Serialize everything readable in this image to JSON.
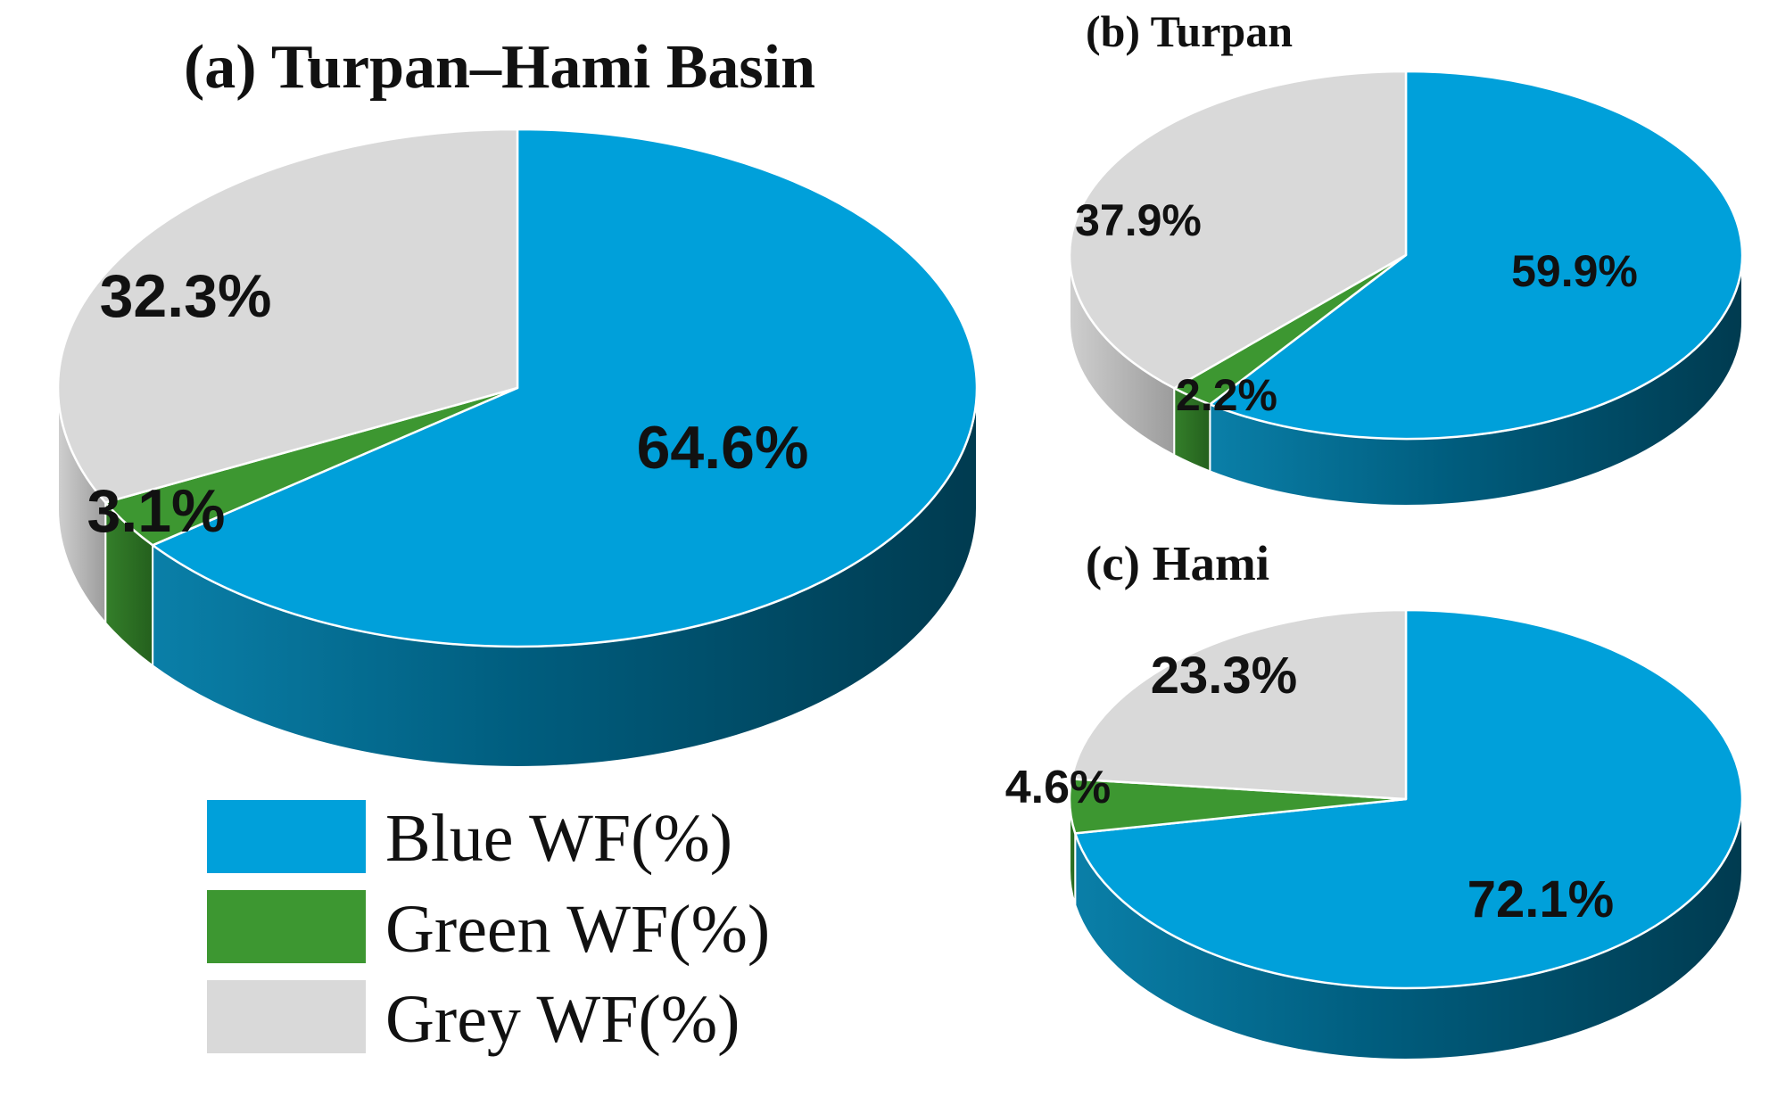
{
  "chart_data": [
    {
      "type": "pie",
      "title": "(a) Turpan–Hami Basin",
      "categories": [
        "Blue WF(%)",
        "Green WF(%)",
        "Grey WF(%)"
      ],
      "values": [
        64.6,
        3.1,
        32.3
      ],
      "labels": [
        "64.6%",
        "3.1%",
        "32.3%"
      ]
    },
    {
      "type": "pie",
      "title": "(b) Turpan",
      "categories": [
        "Blue WF(%)",
        "Green WF(%)",
        "Grey WF(%)"
      ],
      "values": [
        59.9,
        2.2,
        37.9
      ],
      "labels": [
        "59.9%",
        "2.2%",
        "37.9%"
      ]
    },
    {
      "type": "pie",
      "title": "(c) Hami",
      "categories": [
        "Blue WF(%)",
        "Green WF(%)",
        "Grey WF(%)"
      ],
      "values": [
        72.1,
        4.6,
        23.3
      ],
      "labels": [
        "72.1%",
        "4.6%",
        "23.3%"
      ]
    }
  ],
  "legend": {
    "placement": "bottom-left",
    "items": [
      {
        "label": "Blue WF(%)",
        "color": "#00a0da"
      },
      {
        "label": "Green WF(%)",
        "color": "#3d9731"
      },
      {
        "label": "Grey WF(%)",
        "color": "#d9d9d9"
      }
    ]
  },
  "colors": {
    "blue_top": "#00a0da",
    "blue_side": "#00536f",
    "green_top": "#3d9731",
    "green_side": "#2b6c24",
    "grey_top": "#d9d9d9",
    "grey_side": "#a9a9a9"
  }
}
